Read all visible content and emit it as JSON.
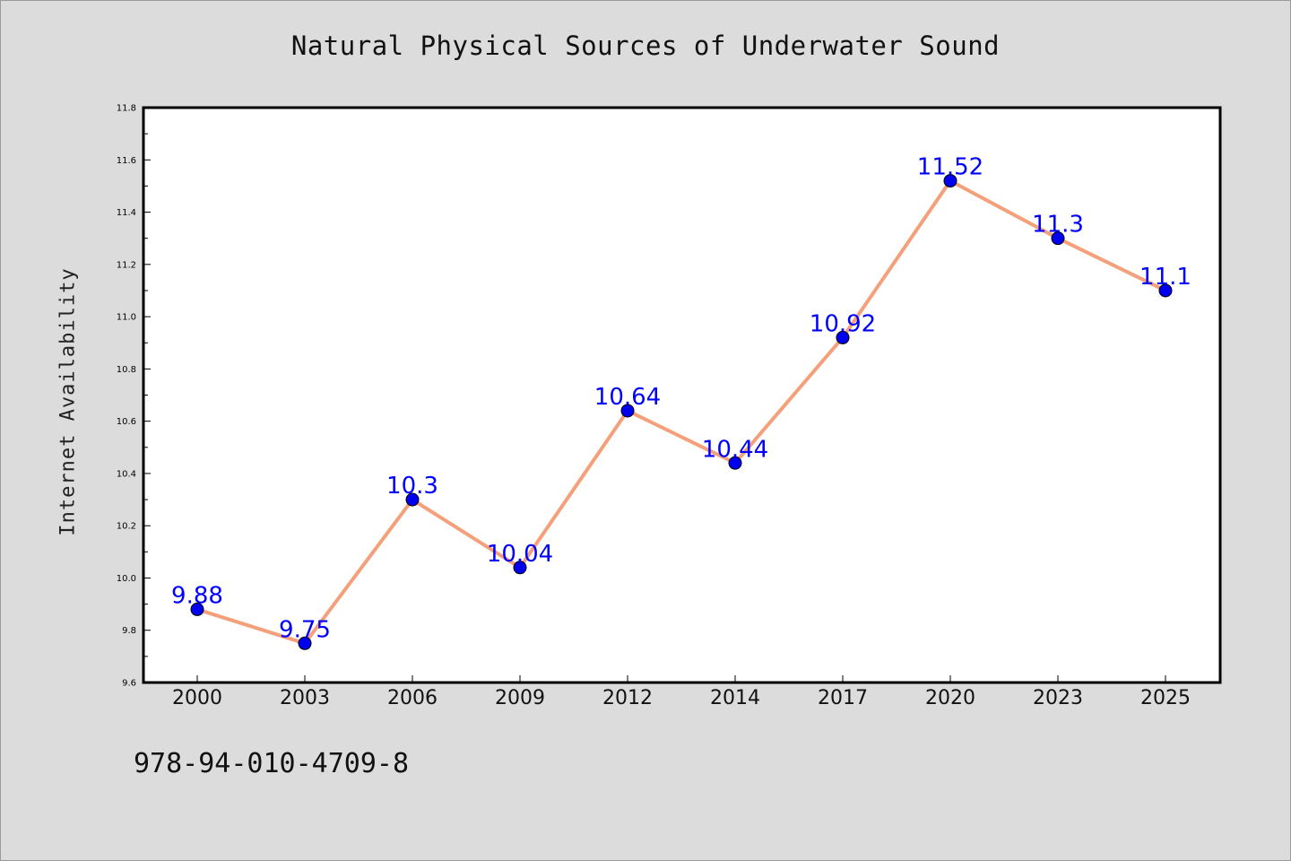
{
  "chart_data": {
    "type": "line",
    "title": "Natural Physical Sources of Underwater Sound",
    "xlabel": "",
    "ylabel": "Internet Availability",
    "categories": [
      "2000",
      "2003",
      "2006",
      "2009",
      "2012",
      "2014",
      "2017",
      "2020",
      "2023",
      "2025"
    ],
    "series": [
      {
        "values": [
          9.88,
          9.75,
          10.3,
          10.04,
          10.64,
          10.44,
          10.92,
          11.52,
          11.3,
          11.1
        ],
        "data_labels": [
          "9.88",
          "9.75",
          "10.3",
          "10.04",
          "10.64",
          "10.44",
          "10.92",
          "11.52",
          "11.3",
          "11.1"
        ],
        "line_color": "#f4a07a",
        "marker_color": "#0000ee",
        "label_color": "#0000ff"
      }
    ],
    "ylim": [
      9.6,
      11.8
    ],
    "yticks": [
      "9.6",
      "9.8",
      "10.0",
      "10.2",
      "10.4",
      "10.6",
      "10.8",
      "11.0",
      "11.2",
      "11.4",
      "11.6",
      "11.8"
    ],
    "grid": false,
    "legend": "none"
  },
  "footnote": "978-94-010-4709-8",
  "colors": {
    "background": "#dcdcdc",
    "plot_background": "#ffffff",
    "axis": "#000000"
  }
}
